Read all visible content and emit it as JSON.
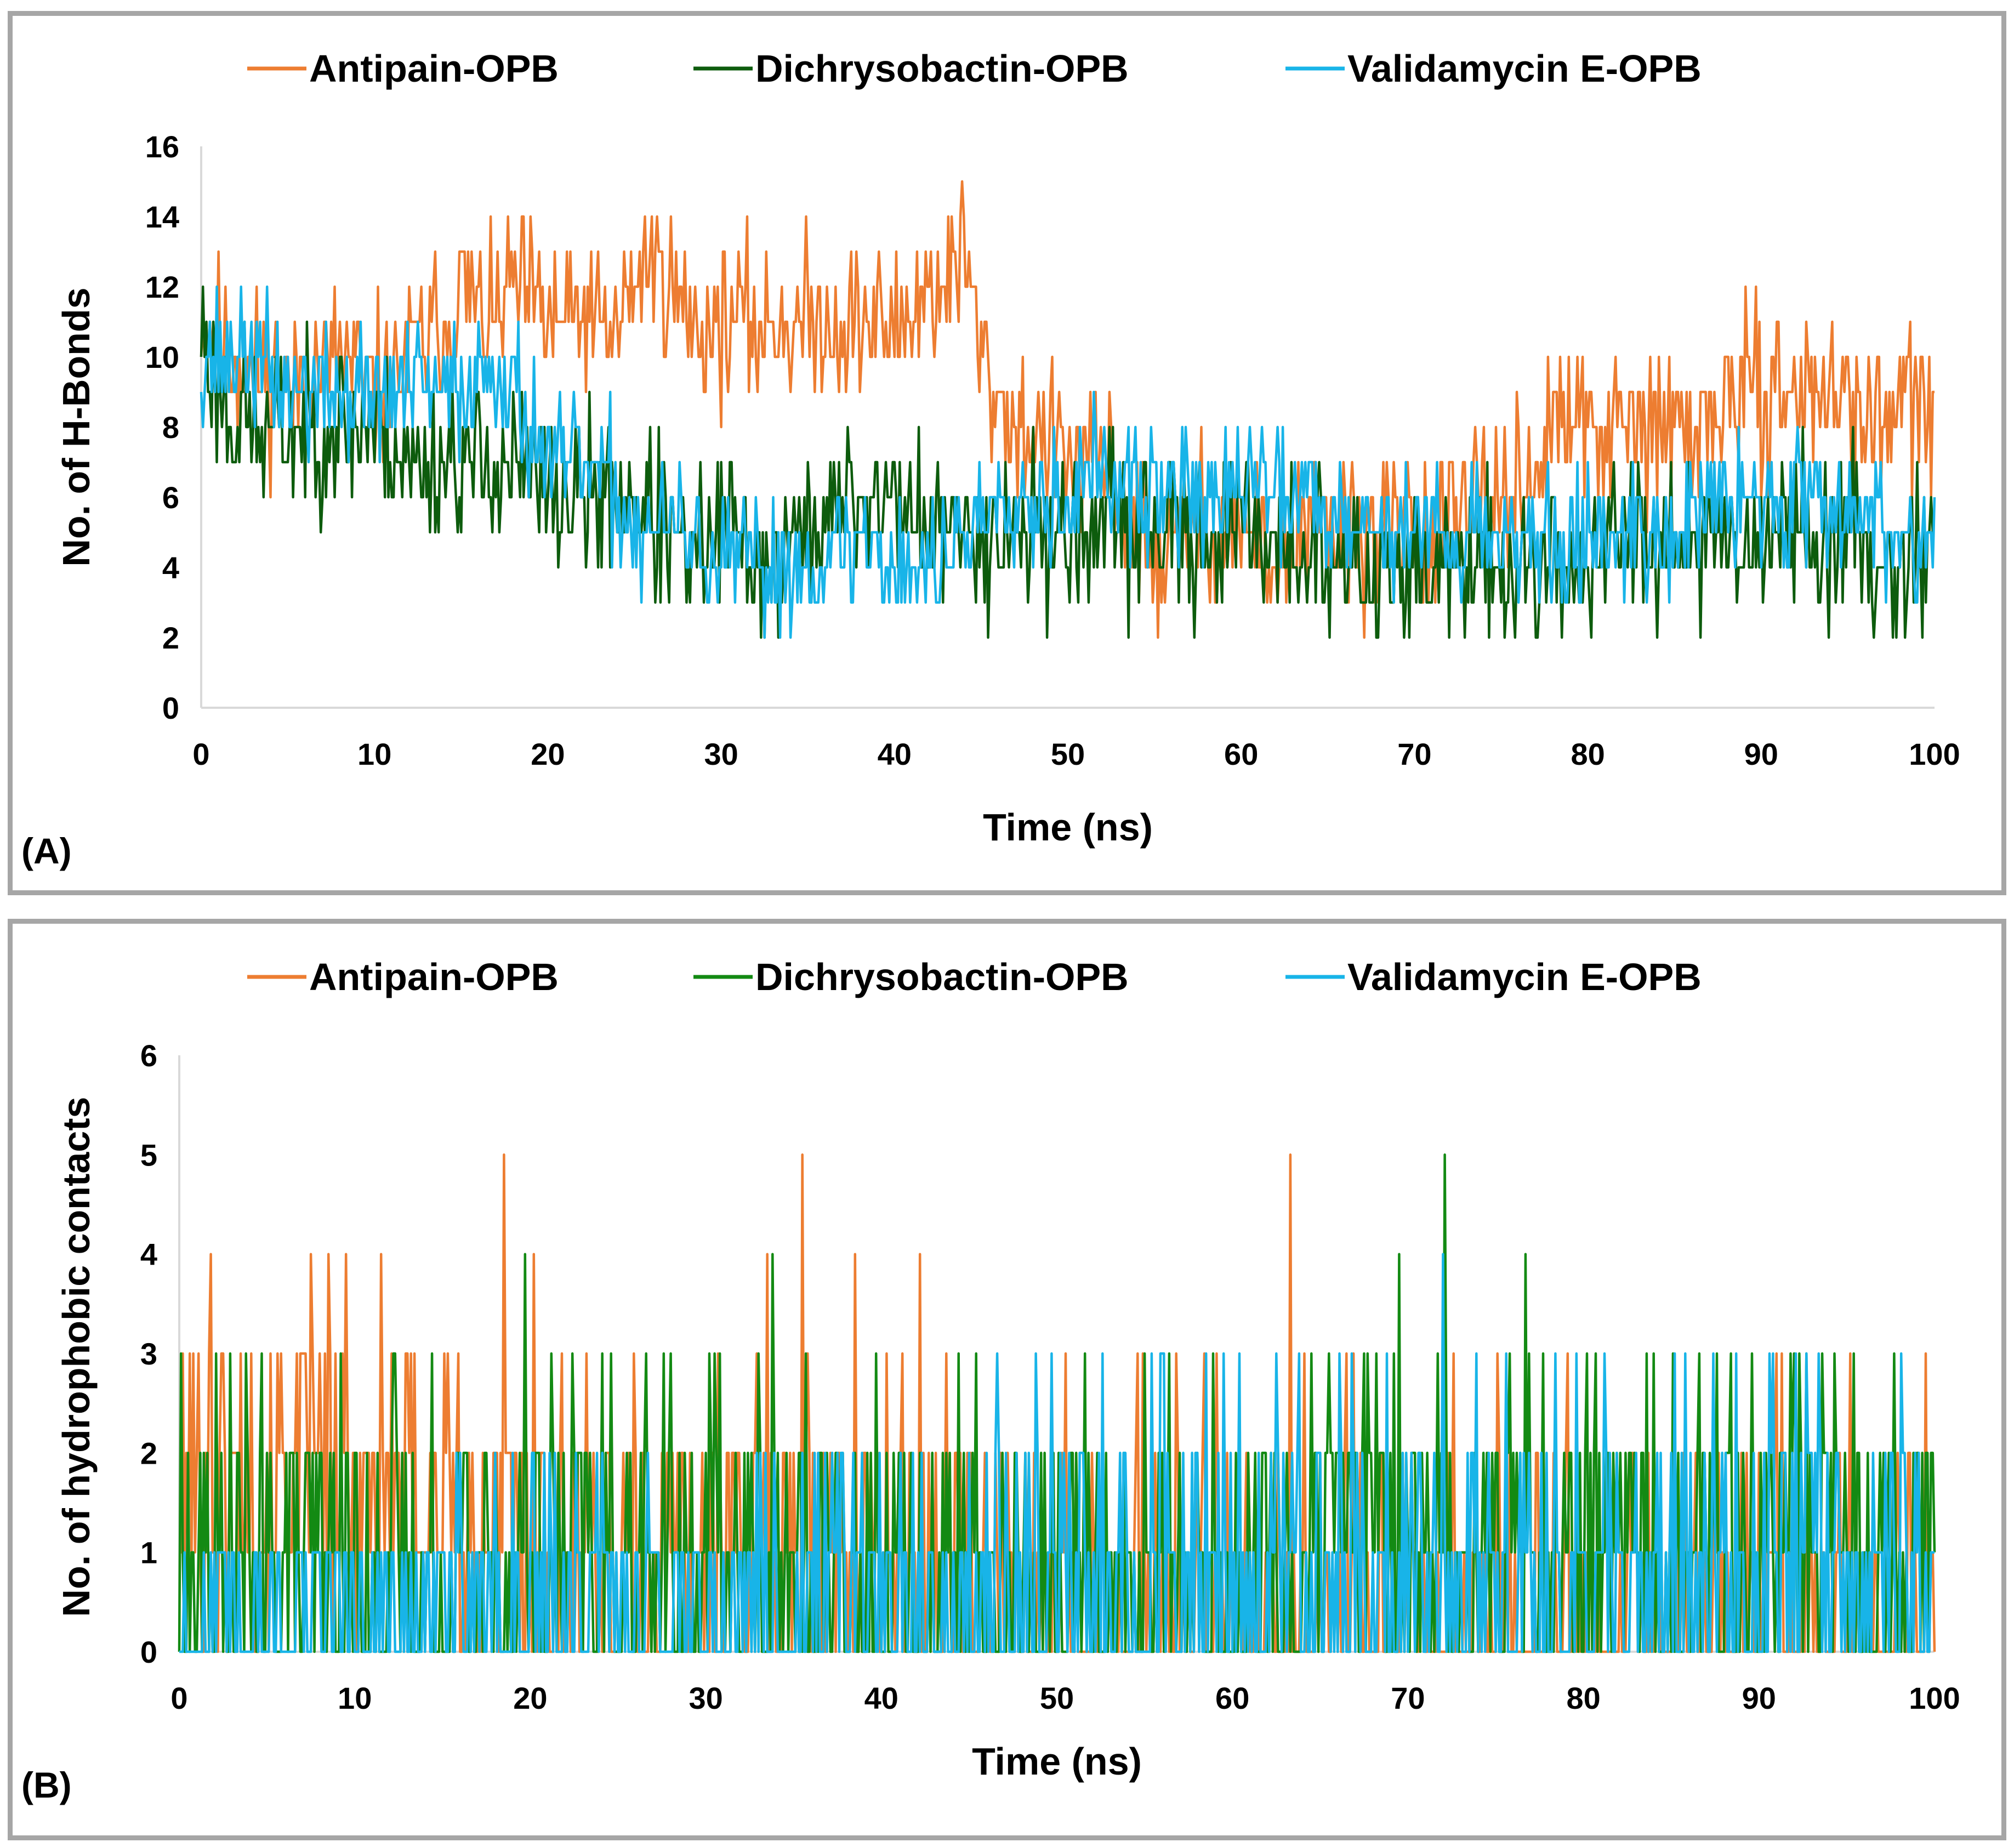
{
  "figure": {
    "panels": [
      {
        "tag": "(A)",
        "legend": [
          "Antipain-OPB",
          "Dichrysobactin-OPB",
          "Validamycin E-OPB"
        ],
        "xlabel": "Time (ns)",
        "ylabel": "No. of H-Bonds"
      },
      {
        "tag": "(B)",
        "legend": [
          "Antipain-OPB",
          "Dichrysobactin-OPB",
          "Validamycin E-OPB"
        ],
        "xlabel": "Time (ns)",
        "ylabel": "No. of hydrophobic contacts"
      }
    ]
  },
  "chart_data": [
    {
      "type": "line",
      "title": "",
      "xlabel": "Time (ns)",
      "ylabel": "No. of H-Bonds",
      "xlim": [
        0,
        100
      ],
      "ylim": [
        0,
        16
      ],
      "xticks": [
        0,
        10,
        20,
        30,
        40,
        50,
        60,
        70,
        80,
        90,
        100
      ],
      "yticks": [
        0,
        2,
        4,
        6,
        8,
        10,
        12,
        14,
        16
      ],
      "legend_position": "top",
      "noise_amplitude": [
        1.1,
        1.1,
        0.9
      ],
      "noise_seed": [
        11,
        23,
        37
      ],
      "series": [
        {
          "name": "Antipain-OPB",
          "color": "#ed7d31",
          "stroke_darken": "#e06f22",
          "x": [
            0,
            2,
            5,
            8,
            10,
            12,
            14,
            15,
            17,
            18,
            20,
            22,
            24,
            25,
            26,
            27,
            28,
            30,
            32,
            35,
            38,
            40,
            42,
            43,
            44,
            45,
            46,
            47,
            48,
            50,
            52,
            54,
            55,
            57,
            59,
            60,
            61,
            62,
            64,
            65,
            67,
            70,
            72,
            75,
            77,
            78,
            80,
            82,
            85,
            87,
            88,
            90,
            92,
            95,
            97,
            99,
            100
          ],
          "y": [
            11,
            10,
            9,
            10,
            9,
            10,
            11,
            12,
            11,
            12,
            11,
            11,
            11,
            12,
            13,
            12,
            11,
            11,
            11,
            11,
            11,
            11,
            12,
            12,
            13,
            10,
            9,
            8,
            8,
            7,
            7,
            5,
            4,
            5,
            5,
            5,
            5,
            4,
            5,
            5,
            5,
            5,
            5,
            6,
            7,
            8,
            8,
            8,
            8,
            8,
            9,
            9,
            9,
            9,
            8,
            9,
            8
          ]
        },
        {
          "name": "Dichrysobactin-OPB",
          "color": "#0d5c0d",
          "x": [
            0,
            1,
            3,
            5,
            8,
            10,
            12,
            15,
            18,
            20,
            22,
            24,
            25,
            27,
            28,
            30,
            33,
            35,
            38,
            40,
            42,
            44,
            46,
            48,
            50,
            52,
            55,
            57,
            60,
            62,
            65,
            68,
            70,
            72,
            75,
            77,
            80,
            82,
            85,
            88,
            90,
            92,
            95,
            98,
            100
          ],
          "y": [
            11,
            9,
            8,
            8,
            8,
            8,
            7,
            7,
            7,
            6,
            6,
            6,
            6,
            5,
            4,
            5,
            4,
            5,
            6,
            6,
            5,
            5,
            5,
            5,
            5,
            5,
            5,
            5,
            5,
            5,
            4,
            4,
            4,
            4,
            4,
            4,
            4,
            5,
            5,
            5,
            5,
            5,
            5,
            4,
            5
          ]
        },
        {
          "name": "Validamycin E-OPB",
          "color": "#18b4e8",
          "x": [
            0,
            1,
            3,
            5,
            8,
            10,
            12,
            15,
            17,
            18,
            20,
            22,
            24,
            25,
            27,
            28,
            30,
            33,
            35,
            38,
            40,
            42,
            44,
            46,
            48,
            50,
            52,
            53,
            55,
            57,
            60,
            61,
            62,
            65,
            68,
            70,
            72,
            75,
            77,
            78,
            80,
            82,
            85,
            88,
            90,
            92,
            95,
            98,
            100
          ],
          "y": [
            10,
            10,
            10,
            9,
            9,
            9,
            9,
            9,
            10,
            9,
            7,
            7,
            6,
            5,
            5,
            5,
            4,
            4,
            4,
            5,
            4,
            4,
            5,
            6,
            6,
            6,
            7,
            6,
            6,
            6,
            6,
            7,
            6,
            6,
            5,
            5,
            5,
            5,
            5,
            4,
            5,
            5,
            5,
            6,
            6,
            6,
            6,
            5,
            5
          ]
        }
      ]
    },
    {
      "type": "line",
      "title": "",
      "xlabel": "Time (ns)",
      "ylabel": "No. of hydrophobic contacts",
      "xlim": [
        0,
        100
      ],
      "ylim": [
        0,
        6
      ],
      "xticks": [
        0,
        10,
        20,
        30,
        40,
        50,
        60,
        70,
        80,
        90,
        100
      ],
      "yticks": [
        0,
        1,
        2,
        3,
        4,
        5,
        6
      ],
      "legend_position": "top",
      "series": [
        {
          "name": "Antipain-OPB",
          "color": "#ed7d31",
          "spikes": [
            [
              1.8,
              4
            ],
            [
              7.5,
              4
            ],
            [
              8.5,
              4
            ],
            [
              9.5,
              4
            ],
            [
              11.5,
              4
            ],
            [
              18.5,
              5
            ],
            [
              20.2,
              4
            ],
            [
              33.5,
              4
            ],
            [
              35.5,
              5
            ],
            [
              38.5,
              4
            ],
            [
              42.2,
              4
            ],
            [
              63.3,
              5
            ],
            [
              99.5,
              3
            ]
          ],
          "segments": [
            [
              0,
              16,
              [
                0.1,
                0.35,
                0.35,
                0.2
              ]
            ],
            [
              16,
              45,
              [
                0.35,
                0.3,
                0.3,
                0.05
              ]
            ],
            [
              45,
              65,
              [
                0.55,
                0.3,
                0.12,
                0.03
              ]
            ],
            [
              65,
              100,
              [
                0.6,
                0.28,
                0.1,
                0.02
              ]
            ]
          ]
        },
        {
          "name": "Dichrysobactin-OPB",
          "color": "#138a13",
          "spikes": [
            [
              19.7,
              4
            ],
            [
              33.8,
              4
            ],
            [
              69.5,
              4
            ],
            [
              72.1,
              5
            ],
            [
              76.7,
              4
            ]
          ],
          "segments": [
            [
              0,
              16,
              [
                0.45,
                0.3,
                0.2,
                0.05
              ]
            ],
            [
              16,
              45,
              [
                0.4,
                0.3,
                0.25,
                0.05
              ]
            ],
            [
              45,
              65,
              [
                0.45,
                0.35,
                0.15,
                0.05
              ]
            ],
            [
              65,
              100,
              [
                0.3,
                0.3,
                0.3,
                0.1
              ]
            ]
          ]
        },
        {
          "name": "Validamycin E-OPB",
          "color": "#18b4e8",
          "spikes": [
            [
              72.0,
              4
            ]
          ],
          "segments": [
            [
              0,
              15,
              [
                0.6,
                0.4,
                0.0,
                0.0
              ]
            ],
            [
              15,
              45,
              [
                0.5,
                0.4,
                0.1,
                0.0
              ]
            ],
            [
              45,
              100,
              [
                0.45,
                0.35,
                0.15,
                0.05
              ]
            ]
          ]
        }
      ]
    }
  ]
}
